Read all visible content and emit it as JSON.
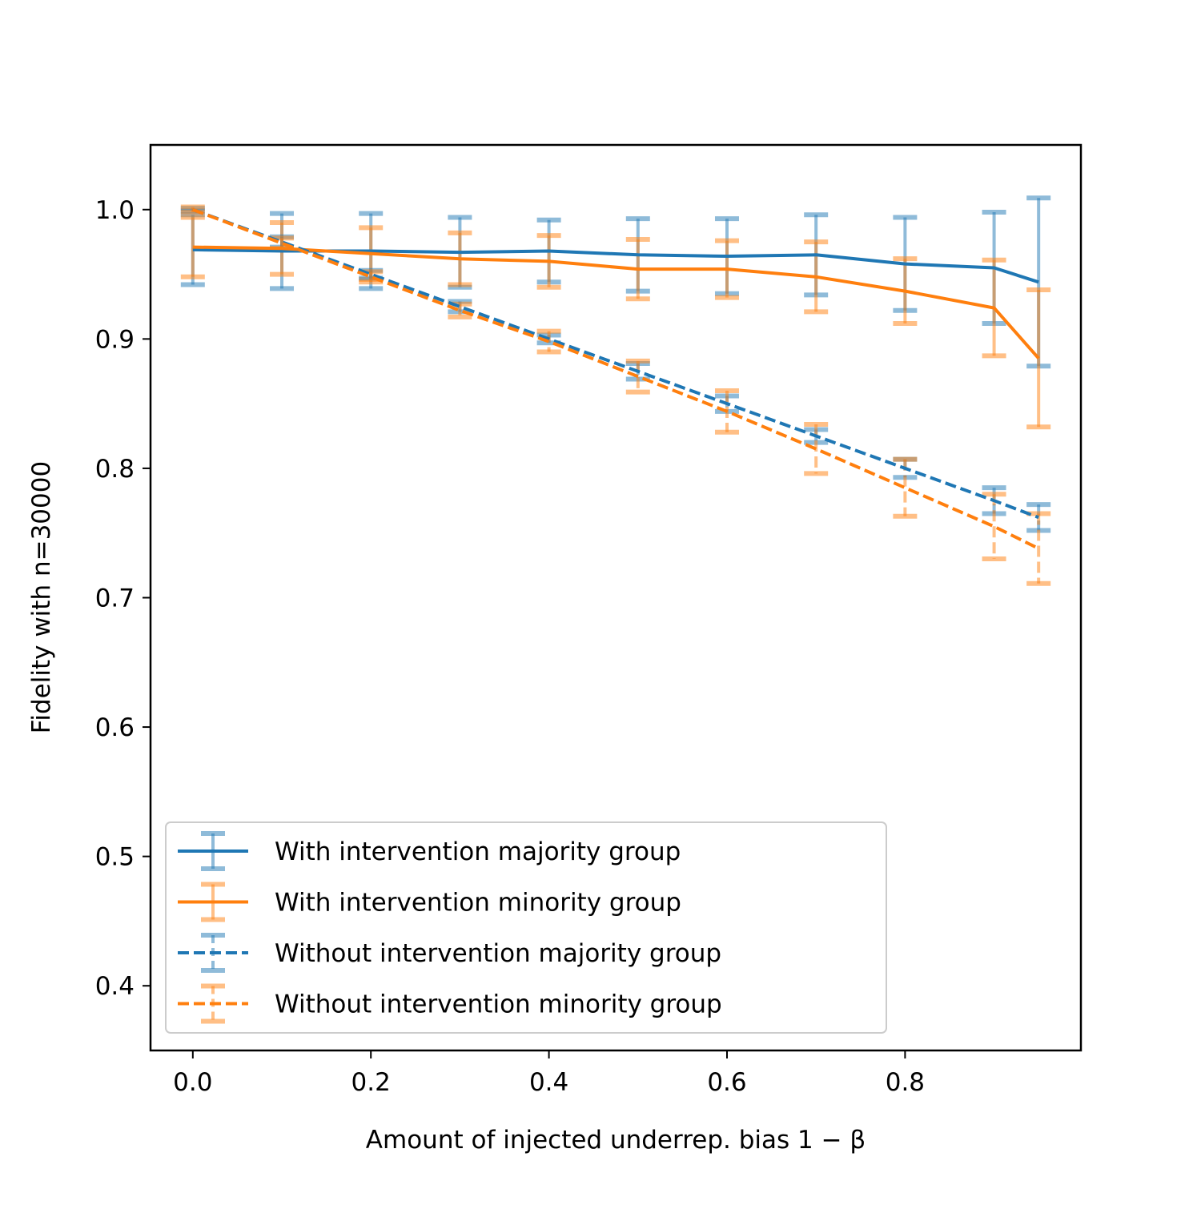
{
  "chart_data": {
    "type": "line",
    "title": "",
    "xlabel": "Amount of injected underrep. bias 1 − β",
    "ylabel": "Fidelity with n=30000",
    "xlim": [
      -0.0475,
      0.9975
    ],
    "ylim": [
      0.35,
      1.05
    ],
    "x_ticks": [
      0.0,
      0.2,
      0.4,
      0.6,
      0.8
    ],
    "x_tick_labels": [
      "0.0",
      "0.2",
      "0.4",
      "0.6",
      "0.8"
    ],
    "y_ticks": [
      0.4,
      0.5,
      0.6,
      0.7,
      0.8,
      0.9,
      1.0
    ],
    "y_tick_labels": [
      "0.4",
      "0.5",
      "0.6",
      "0.7",
      "0.8",
      "0.9",
      "1.0"
    ],
    "x": [
      0.0,
      0.1,
      0.2,
      0.3,
      0.4,
      0.5,
      0.6,
      0.7,
      0.8,
      0.9,
      0.95
    ],
    "grid": false,
    "legend_position": "lower-left",
    "series": [
      {
        "name": "With intervention majority group",
        "color": "#1f77b4",
        "linestyle": "solid",
        "values": [
          0.969,
          0.968,
          0.968,
          0.967,
          0.968,
          0.965,
          0.964,
          0.965,
          0.958,
          0.955,
          0.944
        ],
        "yerr": [
          0.027,
          0.029,
          0.029,
          0.027,
          0.024,
          0.028,
          0.029,
          0.031,
          0.036,
          0.043,
          0.065
        ]
      },
      {
        "name": "With intervention minority group",
        "color": "#ff7f0e",
        "linestyle": "solid",
        "values": [
          0.971,
          0.97,
          0.966,
          0.962,
          0.96,
          0.954,
          0.954,
          0.948,
          0.937,
          0.924,
          0.885
        ],
        "yerr": [
          0.023,
          0.02,
          0.02,
          0.02,
          0.02,
          0.023,
          0.022,
          0.027,
          0.025,
          0.037,
          0.053
        ]
      },
      {
        "name": "Without intervention majority group",
        "color": "#1f77b4",
        "linestyle": "dashed",
        "values": [
          1.0,
          0.975,
          0.95,
          0.925,
          0.9,
          0.875,
          0.85,
          0.825,
          0.8,
          0.775,
          0.762
        ],
        "yerr": [
          0.001,
          0.004,
          0.003,
          0.004,
          0.003,
          0.006,
          0.006,
          0.005,
          0.007,
          0.01,
          0.01
        ]
      },
      {
        "name": "Without intervention minority group",
        "color": "#ff7f0e",
        "linestyle": "dashed",
        "values": [
          1.0,
          0.974,
          0.948,
          0.922,
          0.898,
          0.871,
          0.844,
          0.815,
          0.785,
          0.755,
          0.738
        ],
        "yerr": [
          0.002,
          0.004,
          0.004,
          0.005,
          0.008,
          0.012,
          0.016,
          0.019,
          0.022,
          0.025,
          0.027
        ]
      }
    ]
  }
}
